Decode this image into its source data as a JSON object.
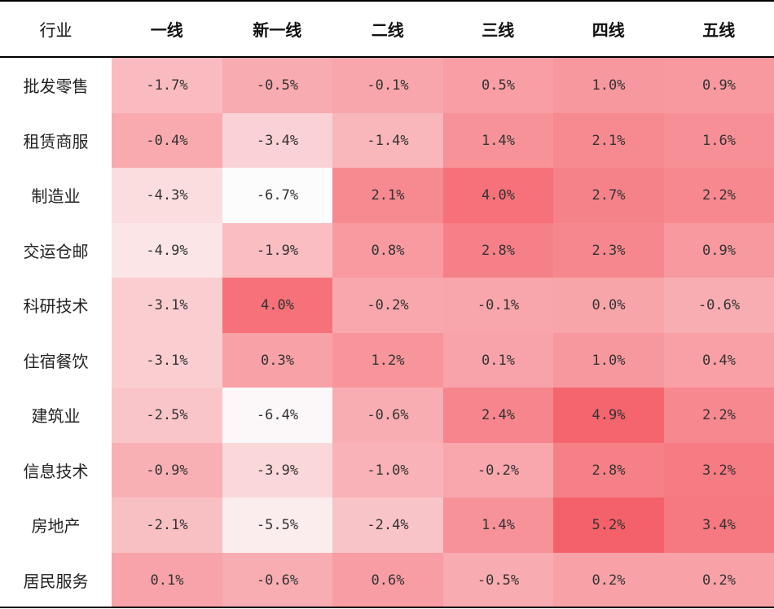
{
  "chart_data": {
    "type": "heatmap",
    "row_header": "行业",
    "columns": [
      "一线",
      "新一线",
      "二线",
      "三线",
      "四线",
      "五线"
    ],
    "rows": [
      "批发零售",
      "租赁商服",
      "制造业",
      "交运仓邮",
      "科研技术",
      "住宿餐饮",
      "建筑业",
      "信息技术",
      "房地产",
      "居民服务"
    ],
    "values": [
      [
        -1.7,
        -0.5,
        -0.1,
        0.5,
        1.0,
        0.9
      ],
      [
        -0.4,
        -3.4,
        -1.4,
        1.4,
        2.1,
        1.6
      ],
      [
        -4.3,
        -6.7,
        2.1,
        4.0,
        2.7,
        2.2
      ],
      [
        -4.9,
        -1.9,
        0.8,
        2.8,
        2.3,
        0.9
      ],
      [
        -3.1,
        4.0,
        -0.2,
        -0.1,
        0.0,
        -0.6
      ],
      [
        -3.1,
        0.3,
        1.2,
        0.1,
        1.0,
        0.4
      ],
      [
        -2.5,
        -6.4,
        -0.6,
        2.4,
        4.9,
        2.2
      ],
      [
        -0.9,
        -3.9,
        -1.0,
        -0.2,
        2.8,
        3.2
      ],
      [
        -2.1,
        -5.5,
        -2.4,
        1.4,
        5.2,
        3.4
      ],
      [
        0.1,
        -0.6,
        0.6,
        -0.5,
        0.2,
        0.2
      ]
    ],
    "unit": "%",
    "color_scale": {
      "min": -6.7,
      "max": 5.2,
      "low_color": "#fcfcfd",
      "high_color": "#f5616a"
    }
  }
}
